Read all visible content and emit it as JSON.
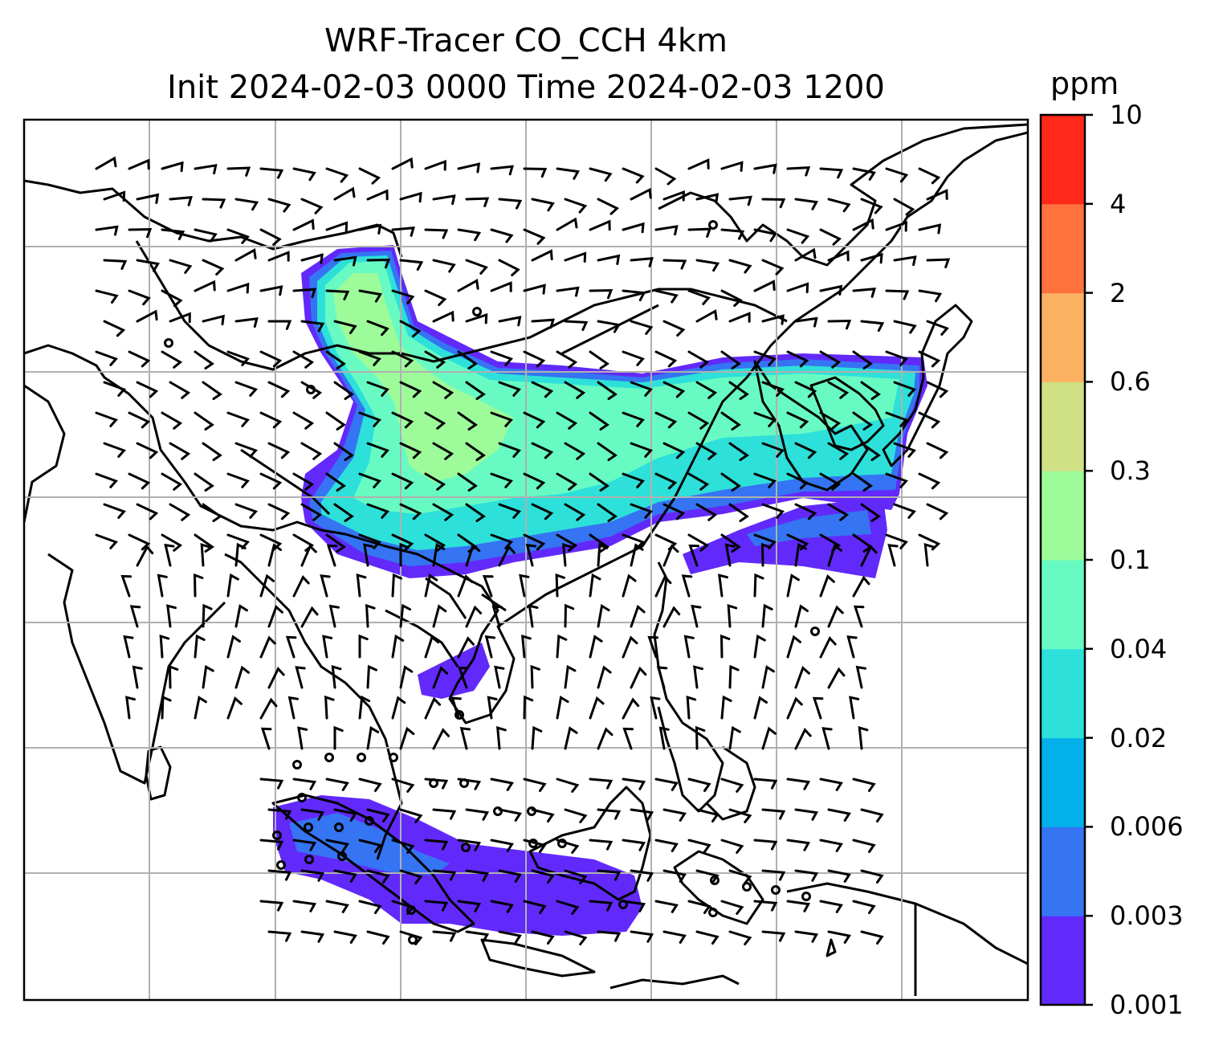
{
  "title": {
    "line1": "WRF-Tracer CO_CCH 4km",
    "line2": "Init 2024-02-03 0000 Time 2024-02-03 1200"
  },
  "colorbar": {
    "unit": "ppm",
    "ticks": [
      "0.001",
      "0.003",
      "0.006",
      "0.02",
      "0.04",
      "0.1",
      "0.3",
      "0.6",
      "2",
      "4",
      "10"
    ],
    "colors": [
      "#6229fb",
      "#3574f2",
      "#04b0ea",
      "#2de0d9",
      "#67fbc3",
      "#9dfb9a",
      "#d0e185",
      "#fdb162",
      "#ff713d",
      "#fe2918"
    ]
  },
  "map": {
    "features": [
      "coastlines",
      "country-borders",
      "gridlines",
      "wind-barbs",
      "co-tracer-shading"
    ]
  }
}
